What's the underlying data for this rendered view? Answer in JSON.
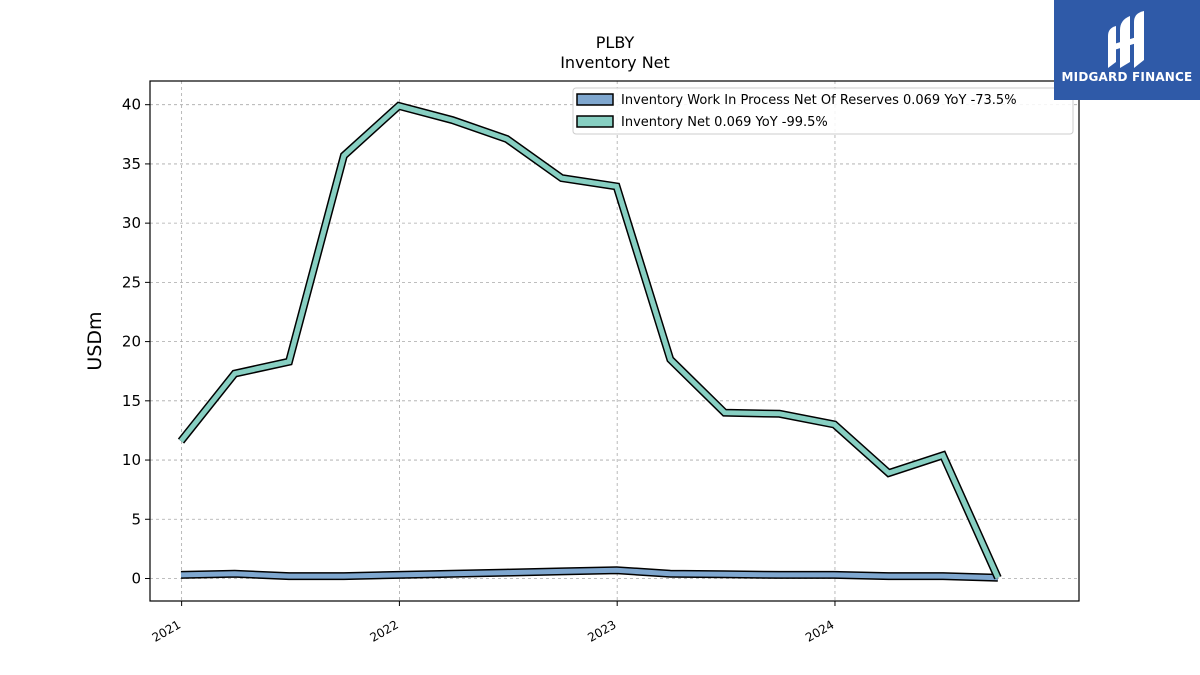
{
  "brand": {
    "name": "MIDGARD FINANCE",
    "bg_color": "#2f5aa8",
    "icon": "midgard-logo-icon"
  },
  "chart_data": {
    "type": "line",
    "title": "PLBY",
    "subtitle": "Inventory Net",
    "xlabel": "",
    "ylabel": "USDm",
    "x_ticks": [
      "2021",
      "2022",
      "2023",
      "2024"
    ],
    "x": [
      "2020-12-31",
      "2021-03-31",
      "2021-06-30",
      "2021-09-30",
      "2021-12-31",
      "2022-03-31",
      "2022-06-30",
      "2022-09-30",
      "2022-12-31",
      "2023-03-31",
      "2023-06-30",
      "2023-09-30",
      "2023-12-31",
      "2024-03-31",
      "2024-06-30",
      "2024-09-30"
    ],
    "y_ticks": [
      0,
      5,
      10,
      15,
      20,
      25,
      30,
      35,
      40
    ],
    "ylim": [
      -1.9,
      42.0
    ],
    "grid": true,
    "legend_position": "top-right",
    "series": [
      {
        "name": "Inventory Work In Process Net Of Reserves  0.069 YoY -73.5%",
        "color": "#7fa7cf",
        "values": [
          0.3,
          0.4,
          0.2,
          0.2,
          0.3,
          0.4,
          0.5,
          0.6,
          0.7,
          0.4,
          0.35,
          0.3,
          0.3,
          0.2,
          0.2,
          0.07
        ]
      },
      {
        "name": "Inventory Net  0.069 YoY -99.5%",
        "color": "#87cfc2",
        "values": [
          11.6,
          17.3,
          18.3,
          35.7,
          39.9,
          38.7,
          37.1,
          33.8,
          33.1,
          18.5,
          14.0,
          13.9,
          13.0,
          8.9,
          10.4,
          0.07
        ]
      }
    ]
  }
}
